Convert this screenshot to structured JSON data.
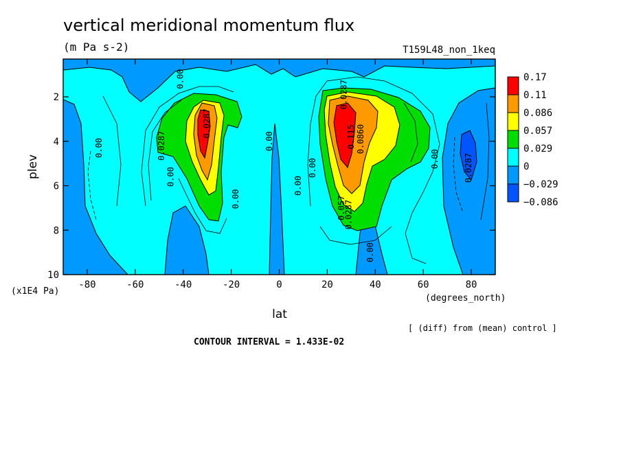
{
  "chart_data": {
    "type": "heatmap",
    "title": "vertical meridional momentum flux",
    "subtitle": "(m Pa s-2)",
    "run_label": "T159L48_non_1keq",
    "xlabel": "lat",
    "x_units": "(degrees_north)",
    "ylabel": "plev",
    "y_units": "(x1E4 Pa)",
    "xlim": [
      -90,
      90
    ],
    "ylim": [
      10,
      0.3
    ],
    "x_ticks": [
      -80,
      -60,
      -40,
      -20,
      0,
      20,
      40,
      60,
      80
    ],
    "x_tick_labels": [
      "-80",
      "-60",
      "-40",
      "-20",
      "0",
      "20",
      "40",
      "60",
      "80"
    ],
    "y_ticks": [
      2,
      4,
      6,
      8,
      10
    ],
    "y_tick_labels": [
      "2",
      "4",
      "6",
      "8",
      "10"
    ],
    "legend_placement": "right",
    "colorbar": {
      "labels": [
        "0.17",
        "0.11",
        "0.086",
        "0.057",
        "0.029",
        "0",
        "−0.029",
        "−0.086"
      ],
      "colors": [
        "#ff0000",
        "#ff9900",
        "#ffff00",
        "#00dd00",
        "#00ffff",
        "#0099ff",
        "#0055ff"
      ]
    },
    "contour_labels": [
      {
        "text": "0.00",
        "lat": -40,
        "plev": 1.2
      },
      {
        "text": "0.0287",
        "lat": -48,
        "plev": 4.2
      },
      {
        "text": "0.00",
        "lat": -44,
        "plev": 5.6
      },
      {
        "text": "0.00",
        "lat": -74,
        "plev": 4.3
      },
      {
        "text": "0.0287",
        "lat": -29,
        "plev": 3.2
      },
      {
        "text": "0.00",
        "lat": -17,
        "plev": 6.6
      },
      {
        "text": "0.00",
        "lat": -3,
        "plev": 4.0
      },
      {
        "text": "0.00",
        "lat": 9,
        "plev": 6.0
      },
      {
        "text": "0.00",
        "lat": 15,
        "plev": 5.2
      },
      {
        "text": "0.0287",
        "lat": 28,
        "plev": 1.9
      },
      {
        "text": "0.115",
        "lat": 31,
        "plev": 3.8
      },
      {
        "text": "0.0860",
        "lat": 35,
        "plev": 3.9
      },
      {
        "text": "0.057",
        "lat": 27,
        "plev": 7.0
      },
      {
        "text": "0.0287",
        "lat": 30,
        "plev": 7.3
      },
      {
        "text": "0.00",
        "lat": 39,
        "plev": 9.0
      },
      {
        "text": "0.00",
        "lat": 66,
        "plev": 4.8
      },
      {
        "text": "0.0287",
        "lat": 80,
        "plev": 5.2
      }
    ]
  },
  "footer": {
    "diff_note": "[ (diff) from (mean) control ]",
    "contour_interval": "CONTOUR INTERVAL = 1.433E-02"
  }
}
